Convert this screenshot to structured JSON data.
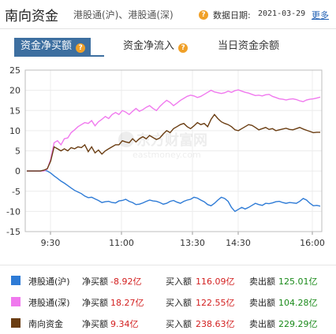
{
  "header": {
    "title": "南向资金",
    "subtitle": "港股通(沪)、港股通(深)",
    "date_label": "数据日期:",
    "date_value": "2021-03-29",
    "more_link": "更多"
  },
  "tabs": [
    {
      "label": "资金净买额",
      "active": true
    },
    {
      "label": "资金净流入",
      "active": false
    },
    {
      "label": "当日资金余额",
      "active": false
    }
  ],
  "watermark": {
    "main": "东方财富网",
    "sub": "eastmoney.com"
  },
  "legend": [
    {
      "name": "港股通(沪)",
      "net_label": "净买额",
      "net_value": "-8.92亿",
      "buy_label": "买入额",
      "buy_value": "116.09亿",
      "sell_label": "卖出额",
      "sell_value": "125.01亿",
      "color": "#2e7bd6"
    },
    {
      "name": "港股通(深)",
      "net_label": "净买额",
      "net_value": "18.27亿",
      "buy_label": "买入额",
      "buy_value": "122.55亿",
      "sell_label": "卖出额",
      "sell_value": "104.28亿",
      "color": "#f079ee"
    },
    {
      "name": "南向资金",
      "net_label": "净买额",
      "net_value": "9.34亿",
      "buy_label": "买入额",
      "buy_value": "238.63亿",
      "sell_label": "卖出额",
      "sell_value": "229.29亿",
      "color": "#6a3d12"
    }
  ],
  "chart_data": {
    "type": "line",
    "ylim": [
      -15,
      25
    ],
    "yticks": [
      -15,
      -10,
      -5,
      0,
      5,
      10,
      15,
      20,
      25
    ],
    "xticks": [
      "9:30",
      "11:00",
      "13:30",
      "14:30",
      "16:00"
    ],
    "series": [
      {
        "name": "港股通(沪)",
        "color": "#2e7bd6",
        "values": [
          0,
          0,
          0,
          0,
          0,
          0.2,
          0,
          -0.5,
          -1.2,
          -1.8,
          -2.5,
          -3.0,
          -3.6,
          -4.2,
          -4.8,
          -5.2,
          -5.6,
          -6.2,
          -6.6,
          -6.5,
          -6.9,
          -7.3,
          -7.8,
          -7.6,
          -7.5,
          -7.8,
          -7.9,
          -7.4,
          -7.3,
          -7.0,
          -7.5,
          -7.8,
          -8.3,
          -8.2,
          -7.9,
          -7.5,
          -7.2,
          -7.4,
          -7.5,
          -7.8,
          -8.2,
          -8.0,
          -7.5,
          -7.3,
          -7.7,
          -8.0,
          -7.5,
          -7.2,
          -7.0,
          -6.5,
          -6.7,
          -7.2,
          -7.6,
          -8.3,
          -8.6,
          -8.0,
          -7.2,
          -6.5,
          -6.8,
          -7.5,
          -9.0,
          -10.0,
          -9.5,
          -9.0,
          -9.4,
          -9.0,
          -8.5,
          -8.0,
          -8.3,
          -8.5,
          -8.0,
          -8.1,
          -7.9,
          -7.6,
          -7.5,
          -7.8,
          -8.0,
          -7.8,
          -7.9,
          -8.0,
          -7.5,
          -6.8,
          -7.2,
          -8.0,
          -8.6,
          -8.5,
          -8.7
        ]
      },
      {
        "name": "港股通(深)",
        "color": "#f079ee",
        "values": [
          0,
          0,
          0,
          0,
          0,
          0,
          0.5,
          3.0,
          7.0,
          7.5,
          6.5,
          8.0,
          8.2,
          9.5,
          10.2,
          11.0,
          11.5,
          12.0,
          11.8,
          12.5,
          11.2,
          12.2,
          12.8,
          13.5,
          13.0,
          14.0,
          14.5,
          14.0,
          15.0,
          14.6,
          14.0,
          14.8,
          15.5,
          14.8,
          15.2,
          15.8,
          16.2,
          15.5,
          15.0,
          16.0,
          16.8,
          17.5,
          17.0,
          16.2,
          16.8,
          17.5,
          18.0,
          18.5,
          18.8,
          18.6,
          18.2,
          18.5,
          19.0,
          19.5,
          20.0,
          19.6,
          19.4,
          19.2,
          19.4,
          19.8,
          19.5,
          19.9,
          20.1,
          19.8,
          19.5,
          19.3,
          19.0,
          18.7,
          18.8,
          18.6,
          18.9,
          19.0,
          18.5,
          18.2,
          17.9,
          17.8,
          17.6,
          17.8,
          17.9,
          17.7,
          17.4,
          17.2,
          17.6,
          17.8,
          17.9,
          18.1,
          18.3
        ]
      },
      {
        "name": "南向资金",
        "color": "#6a3d12",
        "values": [
          0,
          0,
          0,
          0,
          0,
          0.2,
          0.6,
          2.5,
          6.0,
          5.5,
          5.0,
          5.5,
          5.0,
          5.8,
          5.5,
          6.0,
          5.8,
          6.5,
          4.8,
          6.0,
          4.5,
          5.2,
          4.2,
          5.0,
          5.5,
          6.0,
          6.5,
          6.5,
          7.5,
          7.2,
          7.0,
          8.0,
          7.2,
          8.0,
          8.5,
          8.0,
          8.8,
          8.3,
          7.8,
          8.2,
          9.2,
          10.0,
          9.5,
          10.5,
          11.0,
          11.5,
          11.8,
          11.0,
          10.5,
          11.2,
          12.0,
          11.5,
          11.8,
          11.0,
          12.8,
          14.0,
          13.0,
          12.2,
          11.8,
          11.5,
          11.0,
          10.2,
          10.0,
          10.5,
          11.0,
          11.5,
          11.3,
          10.8,
          10.2,
          10.5,
          10.8,
          10.3,
          10.5,
          10.0,
          10.2,
          10.4,
          10.6,
          10.3,
          10.2,
          10.5,
          10.8,
          10.4,
          10.1,
          9.8,
          9.5,
          9.6,
          9.6
        ]
      }
    ]
  }
}
